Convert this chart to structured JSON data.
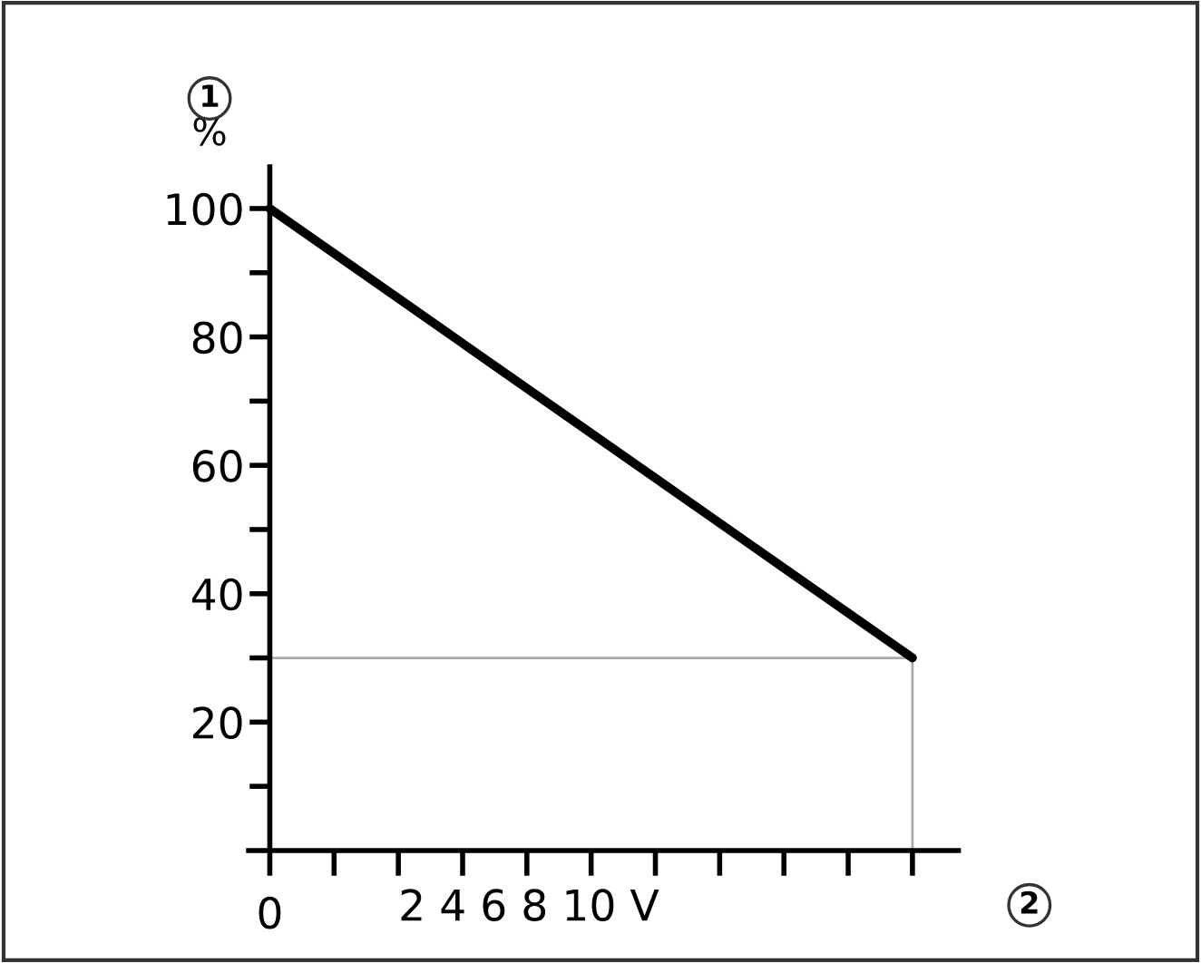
{
  "chart_data": {
    "type": "line",
    "ylabel": "%",
    "categories": [
      "0",
      null,
      null,
      null,
      null,
      null,
      null,
      null,
      null,
      null,
      null
    ],
    "series": [
      {
        "color": "#000000",
        "values": [
          100,
          93,
          86,
          79,
          72,
          65,
          58,
          51,
          44,
          37,
          30
        ],
        "errors": [
          null,
          null,
          null,
          null,
          null,
          null,
          null,
          null,
          null,
          null,
          [
            0,
            30
          ]
        ]
      }
    ],
    "ylim": [
      0,
      106.5
    ],
    "yticks": [
      {
        "value": 10,
        "label": null
      },
      {
        "value": 20,
        "label": "20"
      },
      {
        "value": 30,
        "label": null
      },
      {
        "value": 40,
        "label": "40"
      },
      {
        "value": 50,
        "label": null
      },
      {
        "value": 60,
        "label": "60"
      },
      {
        "value": 70,
        "label": null
      },
      {
        "value": 80,
        "label": "80"
      },
      {
        "value": 90,
        "label": null
      },
      {
        "value": 100,
        "label": "100"
      }
    ],
    "ref_lines": [
      {
        "axis": "y",
        "value": 30,
        "color": "#aaaaaa"
      }
    ],
    "annotations": [
      "1",
      "2",
      "2 4 6 8 10 V"
    ],
    "grid": false,
    "legend": false,
    "marker": "none",
    "line_style": "solid"
  }
}
